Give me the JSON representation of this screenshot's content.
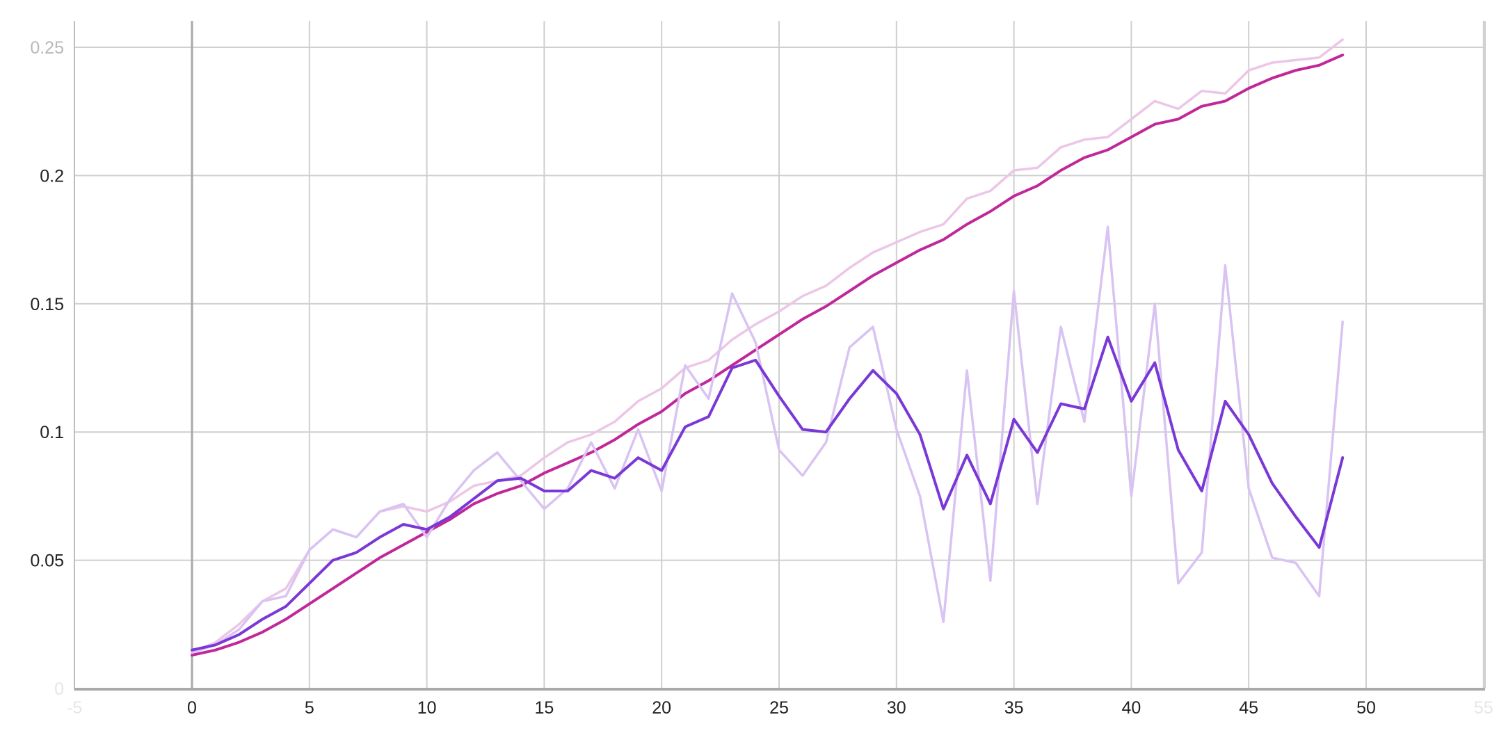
{
  "chart_data": {
    "type": "line",
    "title": "",
    "xlabel": "",
    "ylabel": "",
    "xlim": [
      -5,
      55
    ],
    "ylim": [
      0,
      0.26
    ],
    "grid": true,
    "legend": "none",
    "x_ticks": [
      {
        "value": -5,
        "label": "-5"
      },
      {
        "value": 0,
        "label": "0"
      },
      {
        "value": 5,
        "label": "5"
      },
      {
        "value": 10,
        "label": "10"
      },
      {
        "value": 15,
        "label": "15"
      },
      {
        "value": 20,
        "label": "20"
      },
      {
        "value": 25,
        "label": "25"
      },
      {
        "value": 30,
        "label": "30"
      },
      {
        "value": 35,
        "label": "35"
      },
      {
        "value": 40,
        "label": "40"
      },
      {
        "value": 45,
        "label": "45"
      },
      {
        "value": 50,
        "label": "50"
      },
      {
        "value": 55,
        "label": "55"
      }
    ],
    "y_ticks": [
      {
        "value": 0,
        "label": "0"
      },
      {
        "value": 0.05,
        "label": "0.05"
      },
      {
        "value": 0.1,
        "label": "0.1"
      },
      {
        "value": 0.15,
        "label": "0.15"
      },
      {
        "value": 0.2,
        "label": "0.2"
      },
      {
        "value": 0.25,
        "label": "0.25"
      }
    ],
    "x": [
      0,
      1,
      2,
      3,
      4,
      5,
      6,
      7,
      8,
      9,
      10,
      11,
      12,
      13,
      14,
      15,
      16,
      17,
      18,
      19,
      20,
      21,
      22,
      23,
      24,
      25,
      26,
      27,
      28,
      29,
      30,
      31,
      32,
      33,
      34,
      35,
      36,
      37,
      38,
      39,
      40,
      41,
      42,
      43,
      44,
      45,
      46,
      47,
      48,
      49
    ],
    "series": [
      {
        "role": "raw",
        "color": "#ecc6e6",
        "values": [
          0.014,
          0.018,
          0.025,
          0.034,
          0.039,
          0.054,
          0.062,
          0.059,
          0.069,
          0.071,
          0.069,
          0.073,
          0.079,
          0.081,
          0.083,
          0.09,
          0.096,
          0.099,
          0.104,
          0.112,
          0.117,
          0.125,
          0.128,
          0.136,
          0.142,
          0.147,
          0.153,
          0.157,
          0.164,
          0.17,
          0.174,
          0.178,
          0.181,
          0.191,
          0.194,
          0.202,
          0.203,
          0.211,
          0.214,
          0.215,
          0.222,
          0.229,
          0.226,
          0.233,
          0.232,
          0.241,
          0.244,
          0.245,
          0.246,
          0.253
        ]
      },
      {
        "role": "smoothed",
        "color": "#c0289a",
        "values": [
          0.013,
          0.015,
          0.018,
          0.022,
          0.027,
          0.033,
          0.039,
          0.045,
          0.051,
          0.056,
          0.061,
          0.066,
          0.072,
          0.076,
          0.079,
          0.084,
          0.088,
          0.092,
          0.097,
          0.103,
          0.108,
          0.115,
          0.12,
          0.126,
          0.132,
          0.138,
          0.144,
          0.149,
          0.155,
          0.161,
          0.166,
          0.171,
          0.175,
          0.181,
          0.186,
          0.192,
          0.196,
          0.202,
          0.207,
          0.21,
          0.215,
          0.22,
          0.222,
          0.227,
          0.229,
          0.234,
          0.238,
          0.241,
          0.243,
          0.247
        ]
      },
      {
        "role": "raw",
        "color": "#d9c3f3",
        "values": [
          0.014,
          0.017,
          0.023,
          0.034,
          0.036,
          0.054,
          0.062,
          0.059,
          0.069,
          0.072,
          0.059,
          0.074,
          0.085,
          0.092,
          0.081,
          0.07,
          0.078,
          0.096,
          0.078,
          0.101,
          0.077,
          0.126,
          0.113,
          0.154,
          0.135,
          0.093,
          0.083,
          0.096,
          0.133,
          0.141,
          0.101,
          0.075,
          0.026,
          0.124,
          0.042,
          0.155,
          0.072,
          0.141,
          0.104,
          0.18,
          0.075,
          0.15,
          0.041,
          0.053,
          0.165,
          0.078,
          0.051,
          0.049,
          0.036,
          0.143
        ]
      },
      {
        "role": "smoothed",
        "color": "#7a38d6",
        "values": [
          0.015,
          0.017,
          0.021,
          0.027,
          0.032,
          0.041,
          0.05,
          0.053,
          0.059,
          0.064,
          0.062,
          0.067,
          0.074,
          0.081,
          0.082,
          0.077,
          0.077,
          0.085,
          0.082,
          0.09,
          0.085,
          0.102,
          0.106,
          0.125,
          0.128,
          0.114,
          0.101,
          0.1,
          0.113,
          0.124,
          0.115,
          0.099,
          0.07,
          0.091,
          0.072,
          0.105,
          0.092,
          0.111,
          0.109,
          0.137,
          0.112,
          0.127,
          0.093,
          0.077,
          0.112,
          0.099,
          0.08,
          0.067,
          0.055,
          0.09
        ]
      }
    ]
  }
}
